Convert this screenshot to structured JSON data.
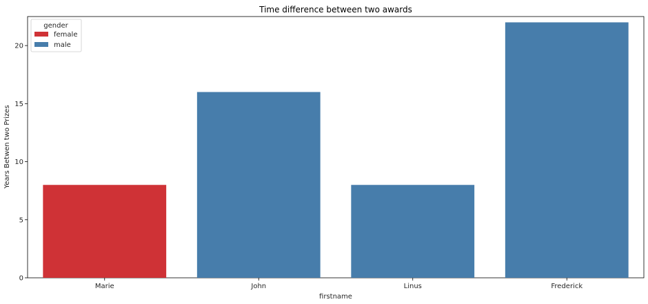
{
  "chart_data": {
    "type": "bar",
    "title": "Time difference between two awards",
    "xlabel": "firstname",
    "ylabel": "Years Betwen two Prizes",
    "categories": [
      "Marie",
      "John",
      "Linus",
      "Frederick"
    ],
    "values": [
      8,
      16,
      8,
      22
    ],
    "groups": [
      "female",
      "male",
      "male",
      "male"
    ],
    "ylim": [
      0,
      22.5
    ],
    "yticks": [
      "0",
      "5",
      "10",
      "15",
      "20"
    ],
    "grid": false,
    "legend": {
      "title": "gender",
      "position": "top-left",
      "entries": [
        {
          "label": "female",
          "color": "#cf3236"
        },
        {
          "label": "male",
          "color": "#477dab"
        }
      ]
    }
  }
}
